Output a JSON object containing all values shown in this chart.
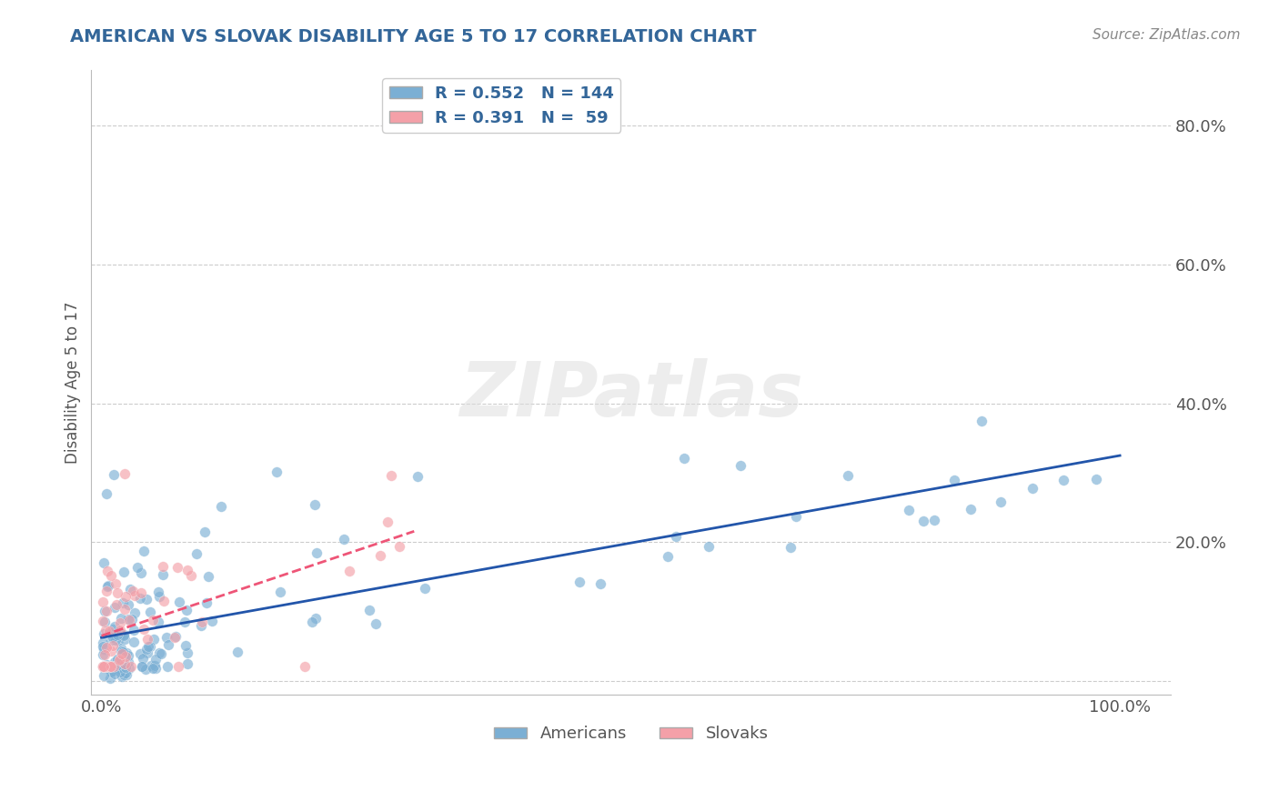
{
  "title": "AMERICAN VS SLOVAK DISABILITY AGE 5 TO 17 CORRELATION CHART",
  "source_text": "Source: ZipAtlas.com",
  "ylabel": "Disability Age 5 to 17",
  "xlim": [
    -0.01,
    1.05
  ],
  "ylim": [
    -0.02,
    0.88
  ],
  "american_R": 0.552,
  "american_N": 144,
  "slovak_R": 0.391,
  "slovak_N": 59,
  "american_color": "#7BAFD4",
  "slovak_color": "#F4A0A8",
  "american_line_color": "#2255AA",
  "slovak_line_color": "#EE5577",
  "background_color": "#ffffff",
  "grid_color": "#cccccc",
  "title_color": "#336699",
  "source_color": "#888888",
  "tick_color": "#555555",
  "watermark_color": "#DDDDDD",
  "legend_label_american": "Americans",
  "legend_label_slovak": "Slovaks",
  "title_fontsize": 14,
  "source_fontsize": 11,
  "tick_fontsize": 13,
  "ylabel_fontsize": 12,
  "legend_fontsize": 13,
  "watermark_fontsize": 60,
  "marker_size": 70,
  "marker_alpha": 0.65,
  "line_width": 2.0
}
